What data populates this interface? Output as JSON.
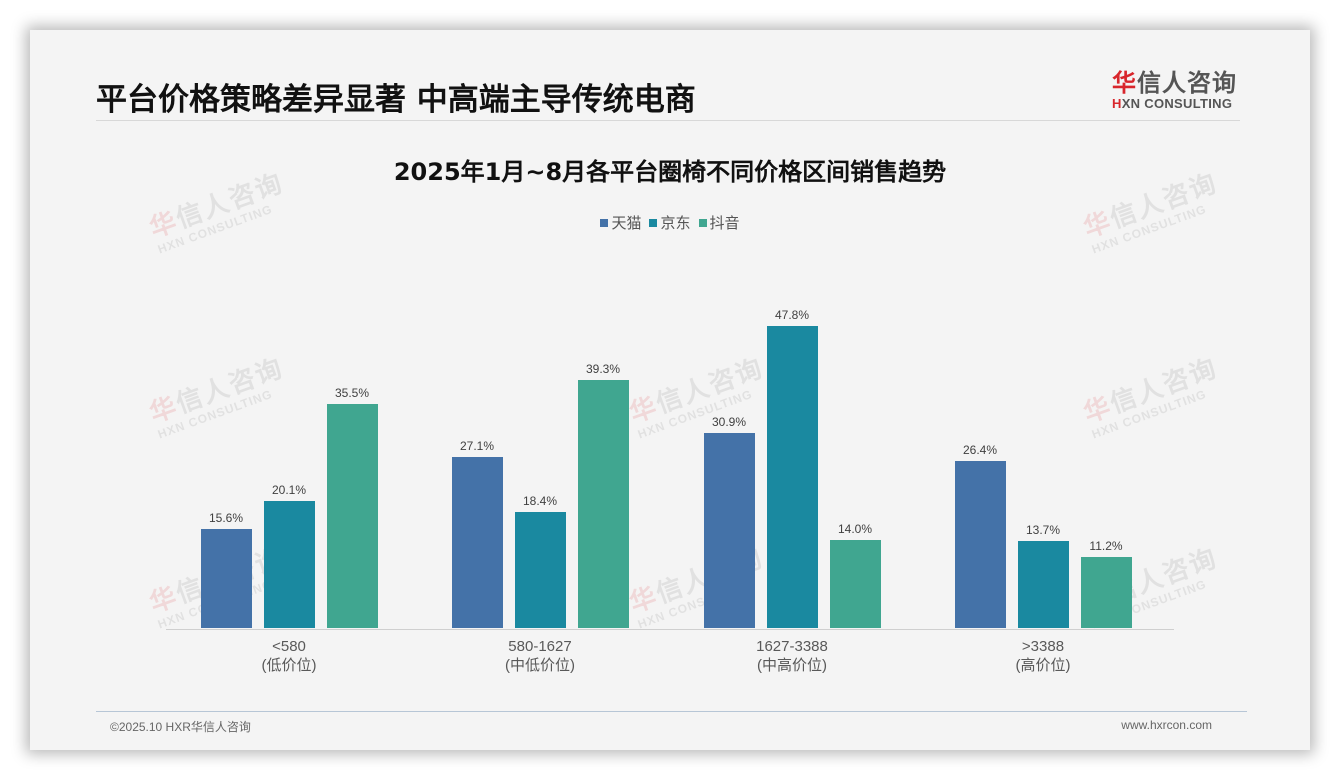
{
  "header": {
    "title": "平台价格策略差异显著 中高端主导传统电商",
    "logo": {
      "cn_red": "华",
      "cn_rest": "信人咨询",
      "en_red": "H",
      "en_rest": "XN CONSULTING"
    }
  },
  "watermark": {
    "cn_red": "华",
    "cn_rest": "信人咨询",
    "en": "HXN CONSULTING"
  },
  "chart_data": {
    "type": "bar",
    "title": "2025年1月~8月各平台圈椅不同价格区间销售趋势",
    "categories": [
      "<580",
      "580-1627",
      "1627-3388",
      ">3388"
    ],
    "category_sublabels": [
      "(低价位)",
      "(中低价位)",
      "(中高价位)",
      "(高价位)"
    ],
    "series": [
      {
        "name": "天猫",
        "color": "#4472a8",
        "values": [
          15.6,
          27.1,
          30.9,
          26.4
        ],
        "labels": [
          "15.6%",
          "27.1%",
          "30.9%",
          "26.4%"
        ]
      },
      {
        "name": "京东",
        "color": "#1a89a0",
        "values": [
          20.1,
          18.4,
          47.8,
          13.7
        ],
        "labels": [
          "20.1%",
          "18.4%",
          "47.8%",
          "13.7%"
        ]
      },
      {
        "name": "抖音",
        "color": "#40a690",
        "values": [
          35.5,
          39.3,
          14.0,
          11.2
        ],
        "labels": [
          "35.5%",
          "39.3%",
          "14.0%",
          "11.2%"
        ]
      }
    ],
    "xlabel": "",
    "ylabel": "",
    "unit": "%",
    "ylim": [
      0,
      50
    ],
    "grid": false,
    "legend_position": "top"
  },
  "footer": {
    "copyright": "©2025.10 HXR华信人咨询",
    "website": "www.hxrcon.com"
  }
}
